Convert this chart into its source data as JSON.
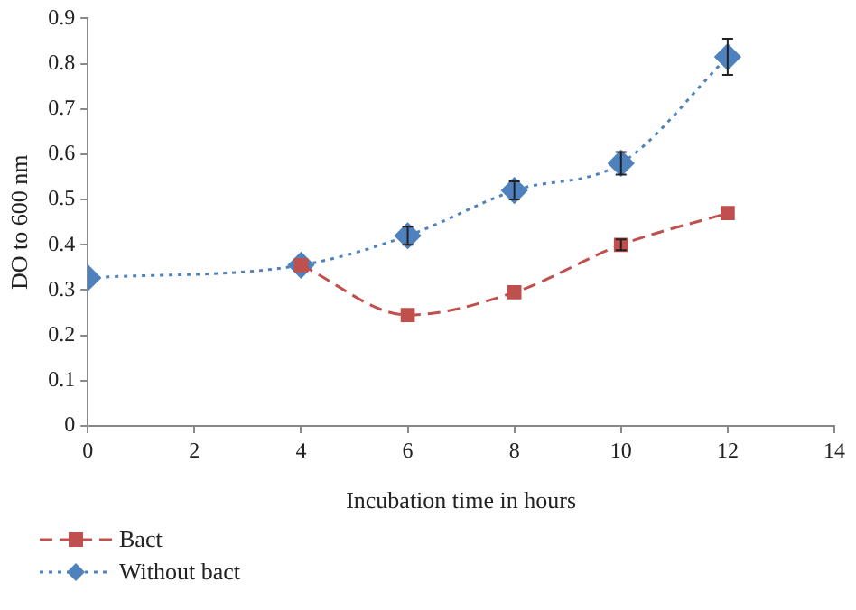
{
  "chart_data": {
    "type": "line",
    "xlabel": "Incubation time in hours",
    "ylabel": "DO to 600 nm",
    "xlim": [
      0,
      14
    ],
    "xticks": [
      0,
      2,
      4,
      6,
      8,
      10,
      12,
      14
    ],
    "ylim": [
      0,
      0.9
    ],
    "yticks": [
      0,
      0.1,
      0.2,
      0.3,
      0.4,
      0.5,
      0.6,
      0.7,
      0.8,
      0.9
    ],
    "grid": false,
    "legend": "bottom left",
    "series": [
      {
        "name": "Bact",
        "color": "#c0504d",
        "marker": "square",
        "line_style": "dashed",
        "x": [
          4,
          6,
          8,
          10,
          12
        ],
        "values": [
          0.355,
          0.245,
          0.295,
          0.4,
          0.47
        ],
        "errors": [
          null,
          null,
          null,
          0.012,
          null
        ]
      },
      {
        "name": "Without bact",
        "color": "#4f81bd",
        "marker": "diamond",
        "line_style": "dotted",
        "x": [
          0,
          4,
          6,
          8,
          10,
          12
        ],
        "values": [
          0.327,
          0.355,
          0.42,
          0.52,
          0.58,
          0.815
        ],
        "errors": [
          null,
          null,
          0.02,
          0.02,
          0.025,
          0.04
        ]
      }
    ]
  }
}
